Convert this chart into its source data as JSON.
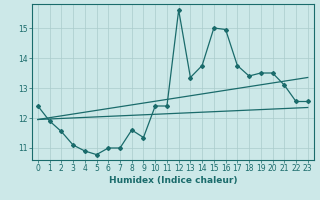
{
  "xlabel": "Humidex (Indice chaleur)",
  "bg_color": "#cce8e8",
  "grid_color": "#aacccc",
  "line_color": "#1a6b6b",
  "xlim": [
    -0.5,
    23.5
  ],
  "ylim": [
    10.6,
    15.8
  ],
  "yticks": [
    11,
    12,
    13,
    14,
    15
  ],
  "xticks": [
    0,
    1,
    2,
    3,
    4,
    5,
    6,
    7,
    8,
    9,
    10,
    11,
    12,
    13,
    14,
    15,
    16,
    17,
    18,
    19,
    20,
    21,
    22,
    23
  ],
  "main_line_x": [
    0,
    1,
    2,
    3,
    4,
    5,
    6,
    7,
    8,
    9,
    10,
    11,
    12,
    13,
    14,
    15,
    16,
    17,
    18,
    19,
    20,
    21,
    22,
    23
  ],
  "main_line_y": [
    12.4,
    11.9,
    11.55,
    11.1,
    10.9,
    10.78,
    11.0,
    11.0,
    11.6,
    11.35,
    12.4,
    12.4,
    15.6,
    13.35,
    13.75,
    15.0,
    14.95,
    13.75,
    13.4,
    13.5,
    13.5,
    13.1,
    12.55,
    12.55
  ],
  "upper_line_x": [
    0,
    23
  ],
  "upper_line_y": [
    11.95,
    13.35
  ],
  "lower_line_x": [
    0,
    23
  ],
  "lower_line_y": [
    11.95,
    12.35
  ],
  "tick_fontsize": 5.5,
  "xlabel_fontsize": 6.5
}
